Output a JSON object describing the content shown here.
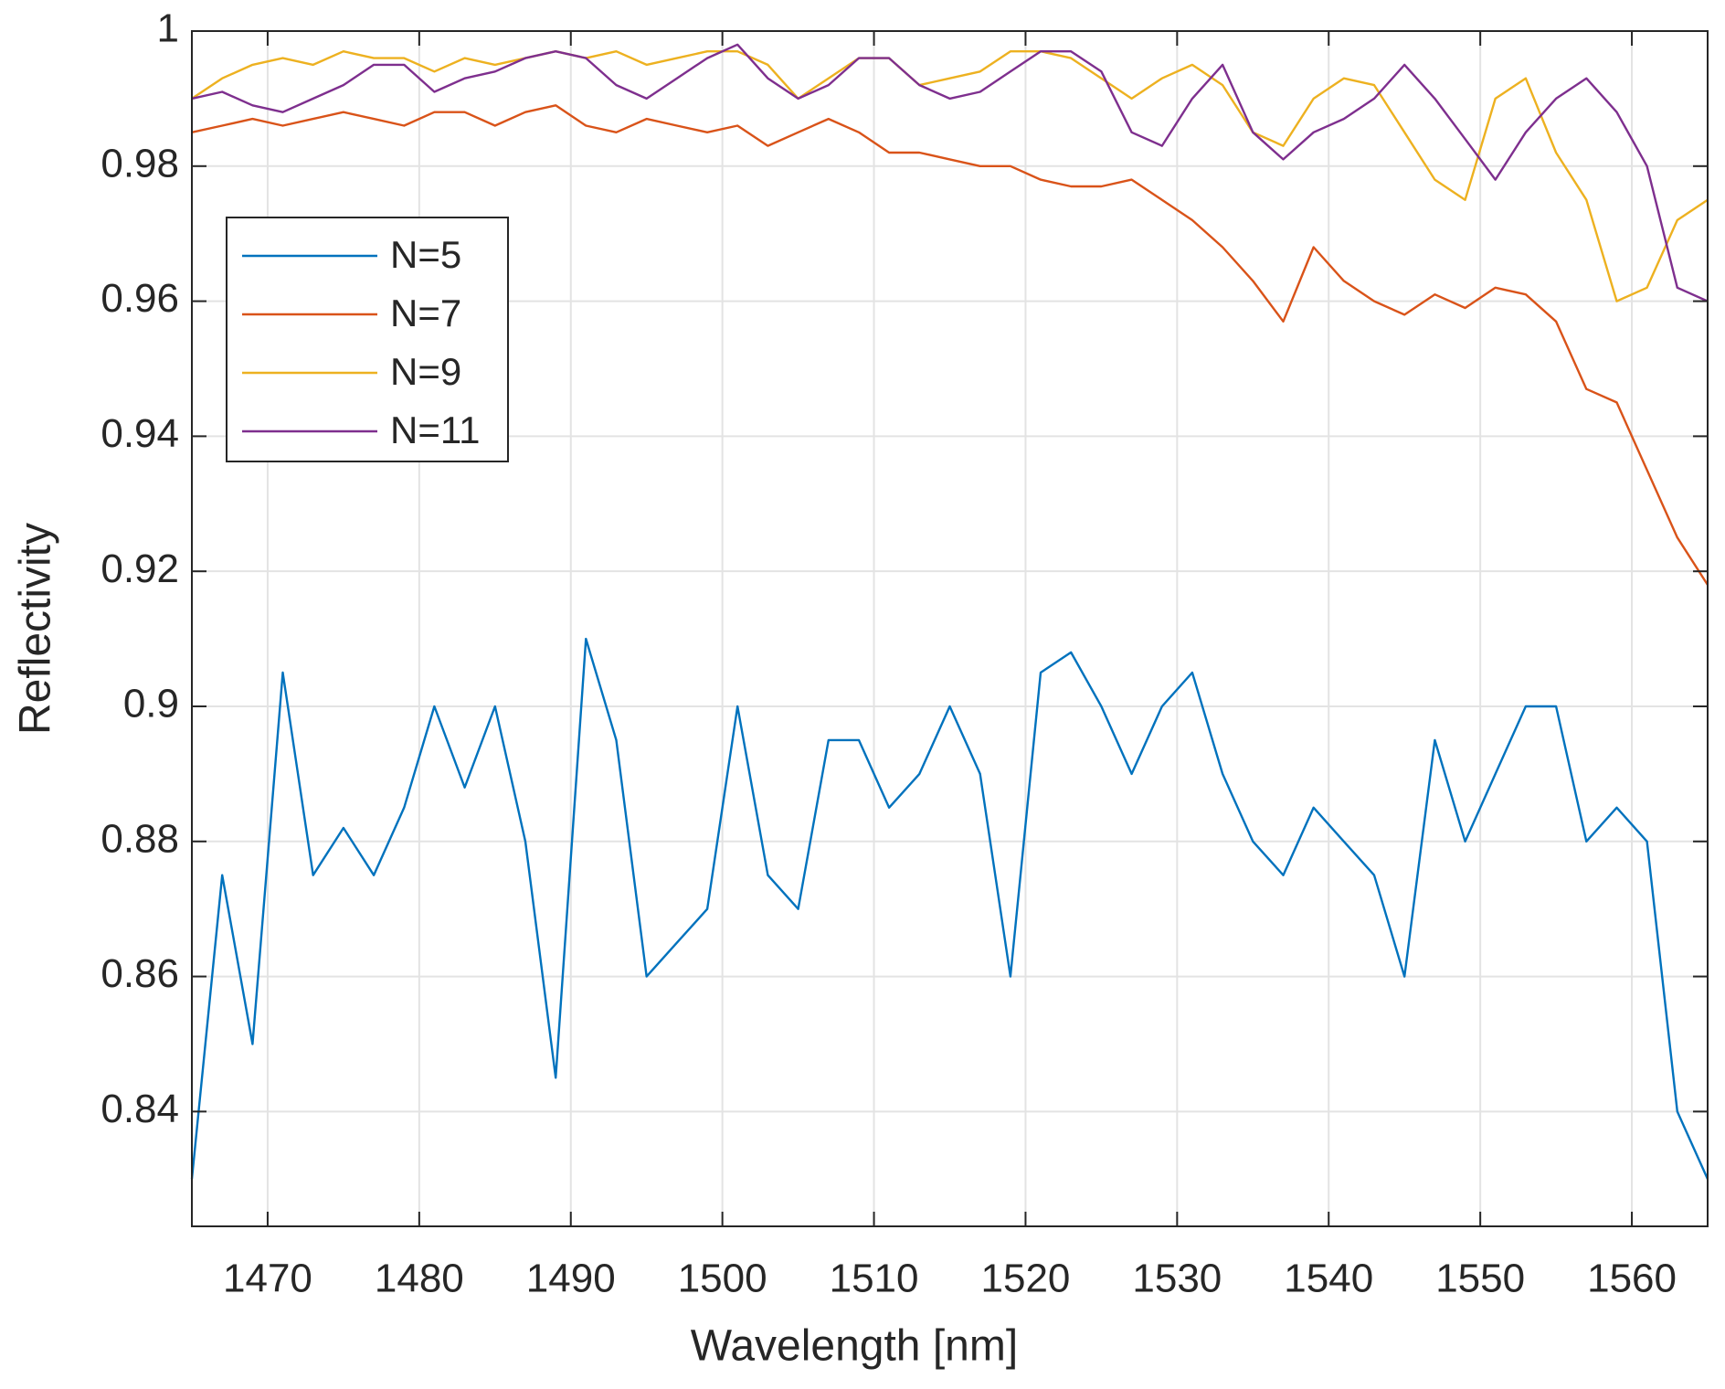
{
  "chart_data": {
    "type": "line",
    "xlabel": "Wavelength [nm]",
    "ylabel": "Reflectivity",
    "x": [
      1465,
      1467,
      1469,
      1471,
      1473,
      1475,
      1477,
      1479,
      1481,
      1483,
      1485,
      1487,
      1489,
      1491,
      1493,
      1495,
      1497,
      1499,
      1501,
      1503,
      1505,
      1507,
      1509,
      1511,
      1513,
      1515,
      1517,
      1519,
      1521,
      1523,
      1525,
      1527,
      1529,
      1531,
      1533,
      1535,
      1537,
      1539,
      1541,
      1543,
      1545,
      1547,
      1549,
      1551,
      1553,
      1555,
      1557,
      1559,
      1561,
      1563,
      1565
    ],
    "series": [
      {
        "name": "N=5",
        "color": "#0072BD",
        "values": [
          0.83,
          0.875,
          0.85,
          0.905,
          0.875,
          0.882,
          0.875,
          0.885,
          0.9,
          0.888,
          0.9,
          0.88,
          0.845,
          0.91,
          0.895,
          0.86,
          0.865,
          0.87,
          0.9,
          0.875,
          0.87,
          0.895,
          0.895,
          0.885,
          0.89,
          0.9,
          0.89,
          0.86,
          0.905,
          0.908,
          0.9,
          0.89,
          0.9,
          0.905,
          0.89,
          0.88,
          0.875,
          0.885,
          0.88,
          0.875,
          0.86,
          0.895,
          0.88,
          0.89,
          0.9,
          0.9,
          0.88,
          0.885,
          0.88,
          0.84,
          0.83
        ]
      },
      {
        "name": "N=7",
        "color": "#D95319",
        "values": [
          0.985,
          0.986,
          0.987,
          0.986,
          0.987,
          0.988,
          0.987,
          0.986,
          0.988,
          0.988,
          0.986,
          0.988,
          0.989,
          0.986,
          0.985,
          0.987,
          0.986,
          0.985,
          0.986,
          0.983,
          0.985,
          0.987,
          0.985,
          0.982,
          0.982,
          0.981,
          0.98,
          0.98,
          0.978,
          0.977,
          0.977,
          0.978,
          0.975,
          0.972,
          0.968,
          0.963,
          0.957,
          0.968,
          0.963,
          0.96,
          0.958,
          0.961,
          0.959,
          0.962,
          0.961,
          0.957,
          0.947,
          0.945,
          0.935,
          0.925,
          0.918
        ]
      },
      {
        "name": "N=9",
        "color": "#EDB120",
        "values": [
          0.99,
          0.993,
          0.995,
          0.996,
          0.995,
          0.997,
          0.996,
          0.996,
          0.994,
          0.996,
          0.995,
          0.996,
          0.997,
          0.996,
          0.997,
          0.995,
          0.996,
          0.997,
          0.997,
          0.995,
          0.99,
          0.993,
          0.996,
          0.996,
          0.992,
          0.993,
          0.994,
          0.997,
          0.997,
          0.996,
          0.993,
          0.99,
          0.993,
          0.995,
          0.992,
          0.985,
          0.983,
          0.99,
          0.993,
          0.992,
          0.985,
          0.978,
          0.975,
          0.99,
          0.993,
          0.982,
          0.975,
          0.96,
          0.962,
          0.972,
          0.975
        ]
      },
      {
        "name": "N=11",
        "color": "#7E2F8E",
        "values": [
          0.99,
          0.991,
          0.989,
          0.988,
          0.99,
          0.992,
          0.995,
          0.995,
          0.991,
          0.993,
          0.994,
          0.996,
          0.997,
          0.996,
          0.992,
          0.99,
          0.993,
          0.996,
          0.998,
          0.993,
          0.99,
          0.992,
          0.996,
          0.996,
          0.992,
          0.99,
          0.991,
          0.994,
          0.997,
          0.997,
          0.994,
          0.985,
          0.983,
          0.99,
          0.995,
          0.985,
          0.981,
          0.985,
          0.987,
          0.99,
          0.995,
          0.99,
          0.984,
          0.978,
          0.985,
          0.99,
          0.993,
          0.988,
          0.98,
          0.962,
          0.96
        ]
      }
    ],
    "xlim": [
      1465,
      1565
    ],
    "ylim": [
      0.823,
      1
    ],
    "xticks": [
      1470,
      1480,
      1490,
      1500,
      1510,
      1520,
      1530,
      1540,
      1550,
      1560
    ],
    "yticks": [
      0.84,
      0.86,
      0.88,
      0.9,
      0.92,
      0.94,
      0.96,
      0.98,
      1
    ],
    "grid": true,
    "legend": "upper left"
  }
}
